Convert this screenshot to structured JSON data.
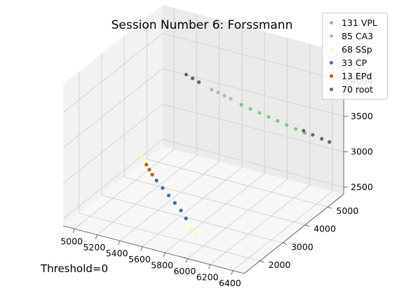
{
  "chart_data": {
    "type": "scatter",
    "projection": "3d",
    "title": "Session Number 6: Forssmann",
    "annotation": "Threshold=0",
    "xlabel": "",
    "ylabel": "",
    "zlabel": "",
    "xlim": [
      4900,
      6500
    ],
    "ylim": [
      1300,
      5700
    ],
    "zlim": [
      2400,
      4400
    ],
    "xticks": [
      "5000",
      "5200",
      "5400",
      "5600",
      "5800",
      "6000",
      "6200",
      "6400"
    ],
    "yticks": [
      "2000",
      "3000",
      "4000",
      "5000"
    ],
    "zticks": [
      "2500",
      "3000",
      "3500",
      "4000"
    ],
    "grid": true,
    "legend_position": "top-right",
    "series": [
      {
        "name": "131 VPL",
        "color": "#7fc97f",
        "points": [
          [
            5760,
            4880,
            3560
          ],
          [
            5830,
            4930,
            3520
          ],
          [
            5900,
            4980,
            3480
          ],
          [
            5970,
            5030,
            3440
          ],
          [
            6040,
            5080,
            3400
          ],
          [
            6110,
            5130,
            3360
          ],
          [
            6180,
            5180,
            3320
          ],
          [
            6250,
            5230,
            3280
          ]
        ]
      },
      {
        "name": "85 CA3",
        "color": "#beaed4",
        "points": [
          [
            5530,
            4720,
            3720
          ],
          [
            5580,
            4750,
            3690
          ],
          [
            5630,
            4780,
            3660
          ],
          [
            5680,
            4810,
            3630
          ]
        ]
      },
      {
        "name": "68 SSp",
        "color": "#fdfd99",
        "points": [
          [
            5440,
            1910,
            3520
          ],
          [
            5460,
            1990,
            3430
          ],
          [
            5480,
            2070,
            3340
          ],
          [
            5830,
            2300,
            2500
          ],
          [
            5870,
            2340,
            2430
          ]
        ]
      },
      {
        "name": "33 CP",
        "color": "#386cb0",
        "points": [
          [
            5550,
            2180,
            3090
          ],
          [
            5600,
            2200,
            3000
          ],
          [
            5650,
            2220,
            2910
          ],
          [
            5700,
            2240,
            2820
          ],
          [
            5750,
            2260,
            2730
          ],
          [
            5790,
            2280,
            2630
          ]
        ]
      },
      {
        "name": "13 EPd",
        "color": "#bf5b17",
        "points": [
          [
            5480,
            2080,
            3310
          ],
          [
            5500,
            2110,
            3240
          ],
          [
            5520,
            2140,
            3170
          ]
        ]
      },
      {
        "name": "70 root",
        "color": "#666666",
        "points": [
          [
            5330,
            4590,
            3880
          ],
          [
            5380,
            4620,
            3840
          ],
          [
            5430,
            4650,
            3800
          ],
          [
            6230,
            5280,
            3290
          ],
          [
            6300,
            5330,
            3250
          ],
          [
            6370,
            5380,
            3210
          ],
          [
            6430,
            5420,
            3180
          ]
        ]
      }
    ]
  }
}
